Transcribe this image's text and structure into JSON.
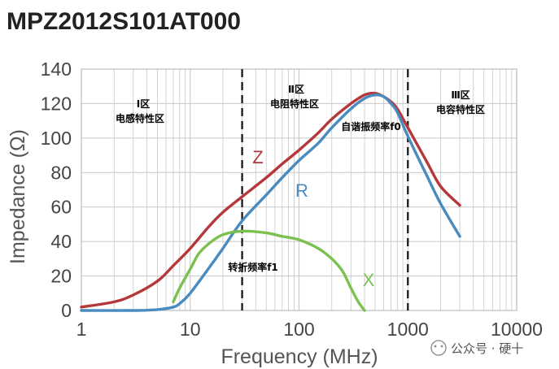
{
  "title": "MPZ2012S101AT000",
  "watermark": "公众号 · 硬十",
  "chart_data": {
    "type": "line",
    "xlabel": "Frequency (MHz)",
    "ylabel": "Impedance (Ω)",
    "xscale": "log",
    "xlim": [
      1,
      10000
    ],
    "ylim": [
      0,
      140
    ],
    "grid": true,
    "x_ticks": [
      "1",
      "10",
      "100",
      "1000",
      "10000"
    ],
    "y_ticks": [
      "0",
      "20",
      "40",
      "60",
      "80",
      "100",
      "120",
      "140"
    ],
    "series": [
      {
        "name": "Z",
        "color": "#b5373a",
        "points": [
          [
            1,
            2
          ],
          [
            2,
            5
          ],
          [
            3,
            9
          ],
          [
            5,
            17
          ],
          [
            7,
            26
          ],
          [
            10,
            36
          ],
          [
            15,
            49
          ],
          [
            20,
            57
          ],
          [
            30,
            66
          ],
          [
            50,
            77
          ],
          [
            70,
            85
          ],
          [
            100,
            93
          ],
          [
            150,
            103
          ],
          [
            200,
            111
          ],
          [
            300,
            120
          ],
          [
            400,
            125
          ],
          [
            500,
            126
          ],
          [
            600,
            124
          ],
          [
            700,
            121
          ],
          [
            800,
            117
          ],
          [
            1000,
            106
          ],
          [
            1500,
            86
          ],
          [
            2000,
            72
          ],
          [
            3000,
            61
          ]
        ]
      },
      {
        "name": "R",
        "color": "#4a8bbf",
        "points": [
          [
            1,
            0
          ],
          [
            3,
            0
          ],
          [
            5,
            0.5
          ],
          [
            7,
            2
          ],
          [
            8,
            4
          ],
          [
            10,
            10
          ],
          [
            15,
            25
          ],
          [
            20,
            36
          ],
          [
            30,
            52
          ],
          [
            50,
            67
          ],
          [
            70,
            77
          ],
          [
            100,
            87
          ],
          [
            150,
            97
          ],
          [
            200,
            106
          ],
          [
            300,
            117
          ],
          [
            400,
            123
          ],
          [
            500,
            125
          ],
          [
            600,
            124
          ],
          [
            700,
            120
          ],
          [
            800,
            115
          ],
          [
            1000,
            101
          ],
          [
            1500,
            78
          ],
          [
            2000,
            62
          ],
          [
            3000,
            43
          ]
        ]
      },
      {
        "name": "X",
        "color": "#7cc04f",
        "points": [
          [
            7,
            5
          ],
          [
            8,
            13
          ],
          [
            10,
            24
          ],
          [
            12,
            33
          ],
          [
            15,
            39
          ],
          [
            20,
            44
          ],
          [
            30,
            46
          ],
          [
            50,
            45
          ],
          [
            70,
            43
          ],
          [
            100,
            41
          ],
          [
            150,
            36
          ],
          [
            200,
            30
          ],
          [
            250,
            23
          ],
          [
            300,
            13
          ],
          [
            350,
            5
          ],
          [
            400,
            0
          ]
        ]
      }
    ],
    "vlines": [
      30,
      1000
    ],
    "annotations": {
      "region1_roman": "Ⅰ区",
      "region1_desc": "电感特性区",
      "region2_roman": "Ⅱ区",
      "region2_desc": "电阻特性区",
      "region3_roman": "Ⅲ区",
      "region3_desc": "电容特性区",
      "resonance": "自谐振频率f0",
      "crossover": "转折频率f1"
    }
  }
}
